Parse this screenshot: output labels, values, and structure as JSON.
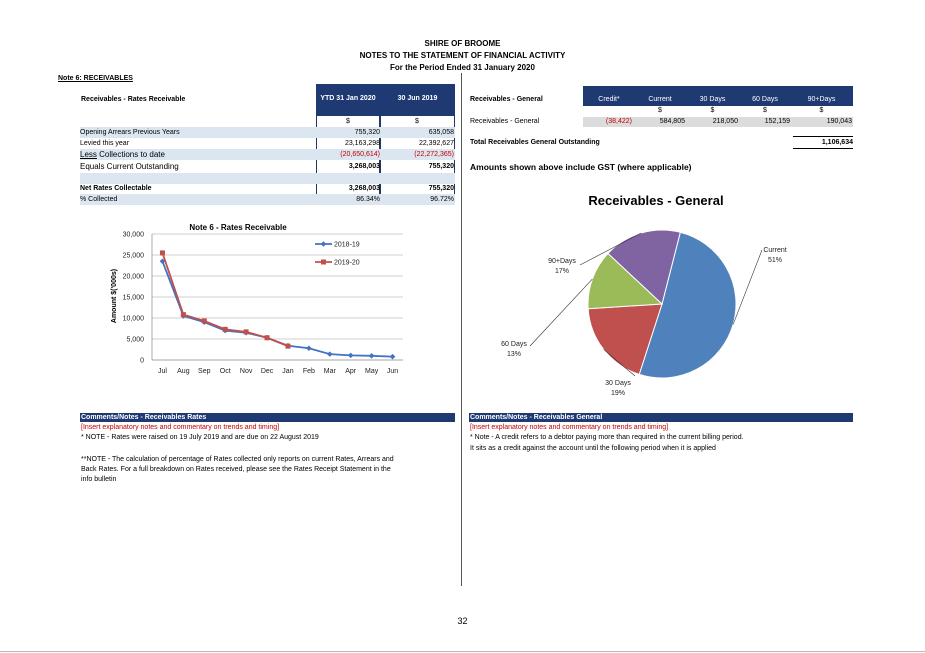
{
  "header": {
    "line1": "SHIRE OF BROOME",
    "line2": "NOTES TO THE STATEMENT OF FINANCIAL ACTIVITY",
    "line3": "For the Period Ended 31 January 2020"
  },
  "note_label": "Note 6: RECEIVABLES",
  "rates_table": {
    "title": "Receivables - Rates Receivable",
    "col1_header": "YTD 31 Jan 2020",
    "col2_header": "30 Jun 2019",
    "currency": "$",
    "rows": [
      {
        "label": "Opening Arrears Previous Years",
        "v1": "755,320",
        "v2": "635,058"
      },
      {
        "label": "Levied this year",
        "v1": "23,163,298",
        "v2": "22,392,627"
      },
      {
        "label_underline": "Less",
        "label_rest": " Collections to date",
        "v1": "(20,650,614)",
        "v2": "(22,272,365)"
      },
      {
        "label": "Equals Current Outstanding",
        "v1": "3,268,003",
        "v2": "755,320"
      }
    ],
    "net_label": "Net Rates Collectable",
    "net_v1": "3,268,003",
    "net_v2": "755,320",
    "pct_label": "% Collected",
    "pct_v1": "86.34%",
    "pct_v2": "96.72%"
  },
  "general_table": {
    "title": "Receivables - General",
    "headers": [
      "Credit*",
      "Current",
      "30 Days",
      "60 Days",
      "90+Days"
    ],
    "currency_row": [
      "",
      "$",
      "$",
      "$",
      "$"
    ],
    "row_label": "Receivables - General",
    "values": [
      "(38,422)",
      "584,805",
      "218,050",
      "152,159",
      "190,043"
    ],
    "total_label": "Total Receivables General Outstanding",
    "total_value": "1,106,634",
    "gst_note": "Amounts shown above include GST (where applicable)"
  },
  "chart_data": [
    {
      "type": "line",
      "title": "Note 6 - Rates Receivable",
      "ylabel": "Amount $('000s)",
      "xlabel": "",
      "categories": [
        "Jul",
        "Aug",
        "Sep",
        "Oct",
        "Nov",
        "Dec",
        "Jan",
        "Feb",
        "Mar",
        "Apr",
        "May",
        "Jun"
      ],
      "ylim": [
        0,
        30000
      ],
      "yticks": [
        "30,000",
        "25,000",
        "20,000",
        "15,000",
        "10,000",
        "5,000",
        "0"
      ],
      "legend_position": "top-right",
      "grid": true,
      "series": [
        {
          "name": "2018-19",
          "color": "#4472c4",
          "marker": "diamond",
          "values": [
            23500,
            10500,
            9000,
            7000,
            6500,
            5300,
            3400,
            2800,
            1400,
            1100,
            1000,
            800
          ]
        },
        {
          "name": "2019-20",
          "color": "#c0504d",
          "marker": "square",
          "values": [
            25500,
            10800,
            9300,
            7300,
            6700,
            5300,
            3300,
            null,
            null,
            null,
            null,
            null
          ]
        }
      ]
    },
    {
      "type": "pie",
      "title": "Receivables - General",
      "slices": [
        {
          "label": "Current",
          "pct": "51%",
          "value": 51,
          "color": "#4f81bd"
        },
        {
          "label": "30 Days",
          "pct": "19%",
          "value": 19,
          "color": "#c0504d"
        },
        {
          "label": "60 Days",
          "pct": "13%",
          "value": 13,
          "color": "#9bbb59"
        },
        {
          "label": "90+Days",
          "pct": "17%",
          "value": 17,
          "color": "#8064a2"
        }
      ]
    }
  ],
  "comments_rates": {
    "title": "Comments/Notes - Receivables Rates",
    "placeholder": "[Insert explanatory notes and commentary on trends and timing]",
    "note1": "* NOTE - Rates were raised on 19 July 2019 and are due on 22 August 2019",
    "note2_l1": "**NOTE - The calculation of percentage of Rates collected only reports on current Rates, Arrears and",
    "note2_l2": "Back Rates. For a full breakdown on Rates received, please see the Rates Receipt Statement in the",
    "note2_l3": "info bulletin"
  },
  "comments_general": {
    "title": "Comments/Notes - Receivables General",
    "placeholder": "[Insert explanatory notes and commentary on trends and timing]",
    "note1_l1": "* Note - A credit refers to a debtor paying more than required in the current billing period.",
    "note1_l2": "It sits as a credit against the account until the following period when it is applied"
  },
  "page_number": "32"
}
